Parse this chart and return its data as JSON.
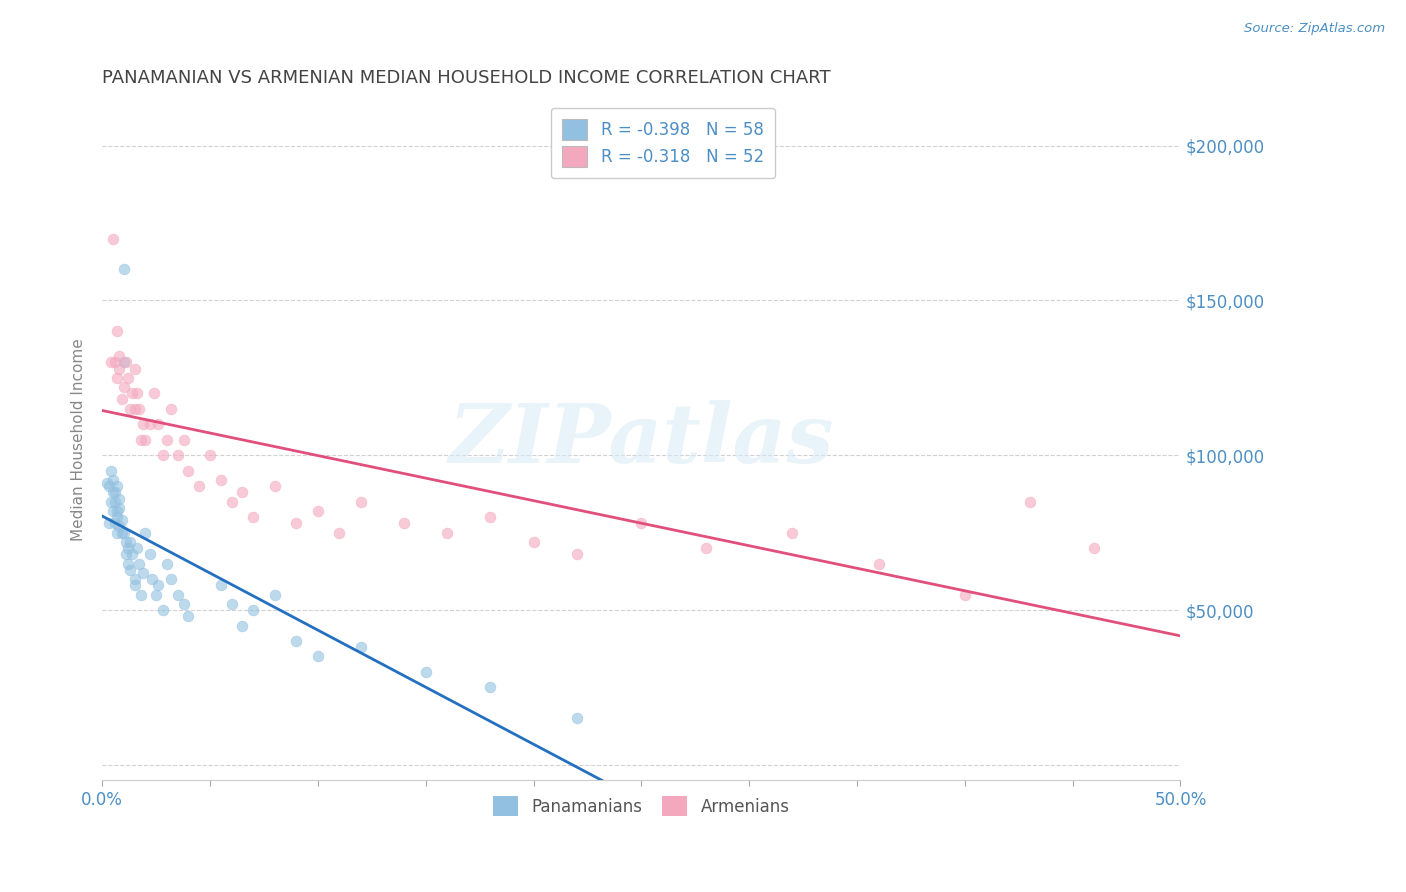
{
  "title": "PANAMANIAN VS ARMENIAN MEDIAN HOUSEHOLD INCOME CORRELATION CHART",
  "source": "Source: ZipAtlas.com",
  "ylabel": "Median Household Income",
  "xlim": [
    0.0,
    0.5
  ],
  "ylim": [
    -5000,
    215000
  ],
  "yticks": [
    0,
    50000,
    100000,
    150000,
    200000
  ],
  "xticks": [
    0.0,
    0.05,
    0.1,
    0.15,
    0.2,
    0.25,
    0.3,
    0.35,
    0.4,
    0.45,
    0.5
  ],
  "background_color": "#ffffff",
  "grid_color": "#cccccc",
  "watermark_text": "ZIPatlas",
  "legend_r1": "R = -0.398",
  "legend_n1": "N = 58",
  "legend_r2": "R = -0.318",
  "legend_n2": "N = 52",
  "blue_color": "#92c0e0",
  "pink_color": "#f4a8be",
  "line_blue": "#2470c0",
  "line_pink": "#e0507a",
  "title_color": "#444444",
  "axis_color": "#4d8fc4",
  "panamanian_x": [
    0.002,
    0.003,
    0.003,
    0.004,
    0.004,
    0.005,
    0.005,
    0.005,
    0.006,
    0.006,
    0.006,
    0.007,
    0.007,
    0.007,
    0.007,
    0.008,
    0.008,
    0.008,
    0.009,
    0.009,
    0.01,
    0.01,
    0.01,
    0.011,
    0.011,
    0.012,
    0.012,
    0.013,
    0.013,
    0.014,
    0.015,
    0.015,
    0.016,
    0.017,
    0.018,
    0.019,
    0.02,
    0.022,
    0.023,
    0.025,
    0.026,
    0.028,
    0.03,
    0.032,
    0.035,
    0.038,
    0.04,
    0.055,
    0.06,
    0.065,
    0.07,
    0.08,
    0.09,
    0.1,
    0.12,
    0.15,
    0.18,
    0.22
  ],
  "panamanian_y": [
    91000,
    78000,
    90000,
    85000,
    95000,
    88000,
    82000,
    92000,
    78000,
    85000,
    88000,
    80000,
    75000,
    82000,
    90000,
    77000,
    83000,
    86000,
    75000,
    79000,
    160000,
    130000,
    75000,
    72000,
    68000,
    70000,
    65000,
    63000,
    72000,
    68000,
    60000,
    58000,
    70000,
    65000,
    55000,
    62000,
    75000,
    68000,
    60000,
    55000,
    58000,
    50000,
    65000,
    60000,
    55000,
    52000,
    48000,
    58000,
    52000,
    45000,
    50000,
    55000,
    40000,
    35000,
    38000,
    30000,
    25000,
    15000
  ],
  "armenian_x": [
    0.004,
    0.005,
    0.006,
    0.007,
    0.007,
    0.008,
    0.008,
    0.009,
    0.01,
    0.011,
    0.012,
    0.013,
    0.014,
    0.015,
    0.015,
    0.016,
    0.017,
    0.018,
    0.019,
    0.02,
    0.022,
    0.024,
    0.026,
    0.028,
    0.03,
    0.032,
    0.035,
    0.038,
    0.04,
    0.045,
    0.05,
    0.055,
    0.06,
    0.065,
    0.07,
    0.08,
    0.09,
    0.1,
    0.11,
    0.12,
    0.14,
    0.16,
    0.18,
    0.2,
    0.22,
    0.25,
    0.28,
    0.32,
    0.36,
    0.4,
    0.43,
    0.46
  ],
  "armenian_y": [
    130000,
    170000,
    130000,
    125000,
    140000,
    128000,
    132000,
    118000,
    122000,
    130000,
    125000,
    115000,
    120000,
    128000,
    115000,
    120000,
    115000,
    105000,
    110000,
    105000,
    110000,
    120000,
    110000,
    100000,
    105000,
    115000,
    100000,
    105000,
    95000,
    90000,
    100000,
    92000,
    85000,
    88000,
    80000,
    90000,
    78000,
    82000,
    75000,
    85000,
    78000,
    75000,
    80000,
    72000,
    68000,
    78000,
    70000,
    75000,
    65000,
    55000,
    85000,
    70000
  ]
}
